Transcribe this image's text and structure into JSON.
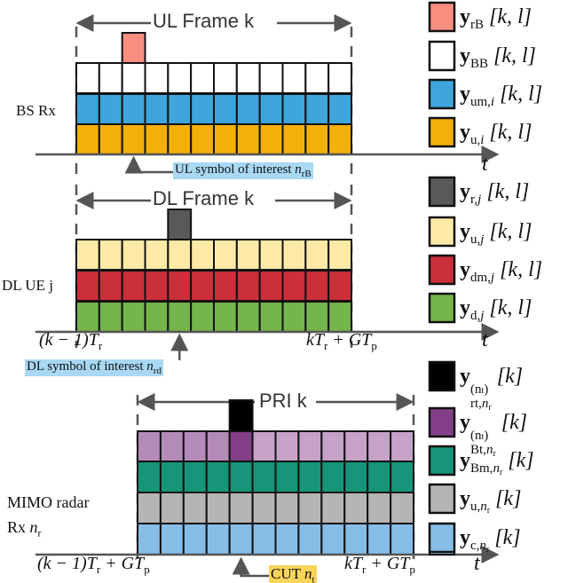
{
  "cells_per_row": 12,
  "ul": {
    "title": "UL Frame k",
    "row_label": "BS Rx",
    "rows": [
      "#ffffff",
      "#3ea6dc",
      "#f3b008"
    ],
    "top_block": {
      "cell": 2,
      "color": "#f88e80"
    },
    "note": {
      "text": "UL symbol of interest ",
      "var": "n",
      "sub": "rB",
      "bg": "#a8d8f4"
    },
    "axis_label": "t",
    "legend": [
      {
        "color": "#f88e80",
        "sub": "rB",
        "arg": "[k, l]"
      },
      {
        "color": "#ffffff",
        "sub": "BB",
        "arg": "[k, l]"
      },
      {
        "color": "#3ea6dc",
        "sub": "um,",
        "subvar": "i",
        "arg": "[k, l]"
      },
      {
        "color": "#f3b008",
        "sub": "u,",
        "subvar": "i",
        "arg": "[k, l]"
      }
    ]
  },
  "dl": {
    "title": "DL Frame k",
    "row_label": "DL UE j",
    "rows": [
      "#feeaa6",
      "#cb2f3a",
      "#74b54c"
    ],
    "top_block": {
      "cell": 4,
      "color": "#595959"
    },
    "note": {
      "text": "DL symbol of interest ",
      "var": "n",
      "sub": "rd",
      "bg": "#a8d8f4"
    },
    "tick_left": "(k − 1)T",
    "tick_left_sub": "r",
    "tick_right": "kT",
    "tick_right_sub": "r",
    "tick_right_tail": " + GT",
    "tick_right_tail_sub": "p",
    "axis_label": "t",
    "legend": [
      {
        "color": "#595959",
        "sub": "r,",
        "subvar": "j",
        "arg": "[k, l]"
      },
      {
        "color": "#feeaa6",
        "sub": "u,",
        "subvar": "j",
        "arg": "[k, l]"
      },
      {
        "color": "#cb2f3a",
        "sub": "dm,",
        "subvar": "j",
        "arg": "[k, l]"
      },
      {
        "color": "#74b54c",
        "sub": "d,",
        "subvar": "j",
        "arg": "[k, l]"
      }
    ]
  },
  "radar": {
    "title": "PRI k",
    "row_label_1": "MIMO radar",
    "row_label_2": "Rx ",
    "row_label_2_var": "n",
    "row_label_2_sub": "r",
    "rows": [
      "#c6a2c8",
      "#16957a",
      "#b5b5b5",
      "#86bde6"
    ],
    "purple_early": "#b48bb8",
    "purple_cut": "#833f88",
    "top_block": {
      "cell": 4,
      "color": "#000000"
    },
    "note": {
      "text": "CUT ",
      "var": "n",
      "sub": "t",
      "bg": "#fbd45a"
    },
    "tick_left": "(k − 1)T",
    "tick_left_sub": "r",
    "tick_left_tail": " + GT",
    "tick_left_tail_sub": "p",
    "tick_right": "kT",
    "tick_right_sub": "r",
    "tick_right_tail": " + GT",
    "tick_right_tail_sub": "p",
    "axis_label": "t",
    "legend": [
      {
        "color": "#000000",
        "sub": "rt,",
        "subvar": "n",
        "subvarsub": "r",
        "sup": "(n",
        "supsub": "t",
        "arg": "[k]"
      },
      {
        "color": "#833f88",
        "sub": "Bt,",
        "subvar": "n",
        "subvarsub": "r",
        "sup": "(n",
        "supsub": "t",
        "arg": "[k]"
      },
      {
        "color": "#16957a",
        "sub": "Bm,",
        "subvar": "n",
        "subvarsub": "r",
        "arg": "[k]"
      },
      {
        "color": "#b5b5b5",
        "sub": "u,",
        "subvar": "n",
        "subvarsub": "r",
        "arg": "[k]"
      },
      {
        "color": "#86bde6",
        "sub": "c,",
        "subvar": "n",
        "subvarsub": "r",
        "arg": "[k]"
      }
    ]
  }
}
